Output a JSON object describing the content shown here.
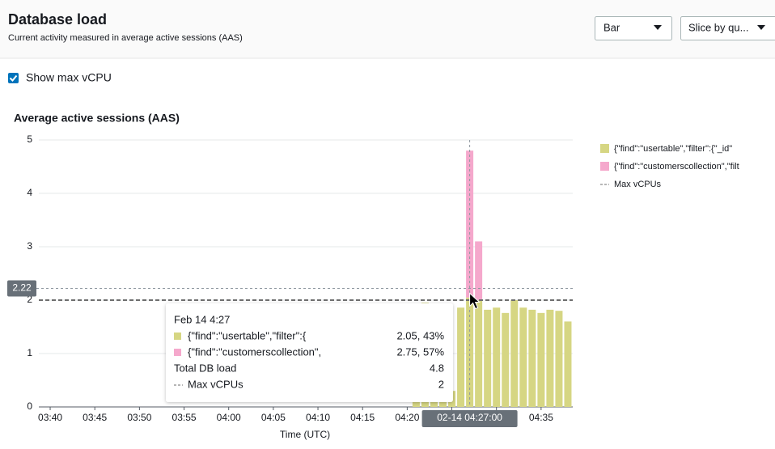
{
  "header": {
    "title": "Database load",
    "subtitle": "Current activity measured in average active sessions (AAS)"
  },
  "controls": {
    "view": "Bar",
    "slice": "Slice by qu..."
  },
  "checkbox": {
    "label": "Show max vCPU",
    "checked": true
  },
  "chart_data": {
    "type": "bar",
    "stacked": true,
    "title": "Average active sessions (AAS)",
    "x_label": "Time (UTC)",
    "x": [
      "04:21",
      "04:22",
      "04:23",
      "04:24",
      "04:25",
      "04:26",
      "04:27",
      "04:28",
      "04:29",
      "04:30",
      "04:31",
      "04:32",
      "04:33",
      "04:34",
      "04:35",
      "04:36",
      "04:37",
      "04:38"
    ],
    "xlim": [
      "03:39",
      "04:39"
    ],
    "xticks": [
      "03:40",
      "03:45",
      "03:50",
      "03:55",
      "04:00",
      "04:05",
      "04:10",
      "04:15",
      "04:20",
      "04:25",
      "04:30",
      "04:35"
    ],
    "series": [
      {
        "name": "{\"find\":\"usertable\",\"filter\":{\"_id\"",
        "color": "#d6d683",
        "values": [
          0.1,
          1.95,
          0.1,
          0.1,
          0.3,
          1.86,
          2.05,
          2.0,
          1.82,
          1.86,
          1.76,
          2.0,
          1.86,
          1.82,
          1.76,
          1.82,
          1.8,
          1.6
        ]
      },
      {
        "name": "{\"find\":\"customerscollection\",\"filt",
        "color": "#f5a8cc",
        "values": [
          0,
          0,
          0,
          0,
          0,
          0,
          2.75,
          1.1,
          0,
          0,
          0,
          0,
          0,
          0,
          0,
          0,
          0,
          0
        ]
      }
    ],
    "ylim": [
      0,
      5
    ],
    "yticks": [
      0,
      1,
      2,
      3,
      4,
      5
    ],
    "grid": true,
    "max_vcpu": {
      "name": "Max vCPUs",
      "value": 2,
      "color": "#6e6e6e"
    },
    "crosshair": {
      "x": "04:27",
      "x_label": "02-14 04:27:00",
      "y": 2.22
    },
    "legend": "right"
  },
  "tooltip": {
    "title": "Feb 14 4:27",
    "rows": [
      {
        "label": "{\"find\":\"usertable\",\"filter\":{",
        "value": "2.05, 43%"
      },
      {
        "label": "{\"find\":\"customerscollection\",",
        "value": "2.75, 57%"
      },
      {
        "label": "Total DB load",
        "value": "4.8"
      },
      {
        "label": "Max vCPUs",
        "value": "2"
      }
    ]
  }
}
